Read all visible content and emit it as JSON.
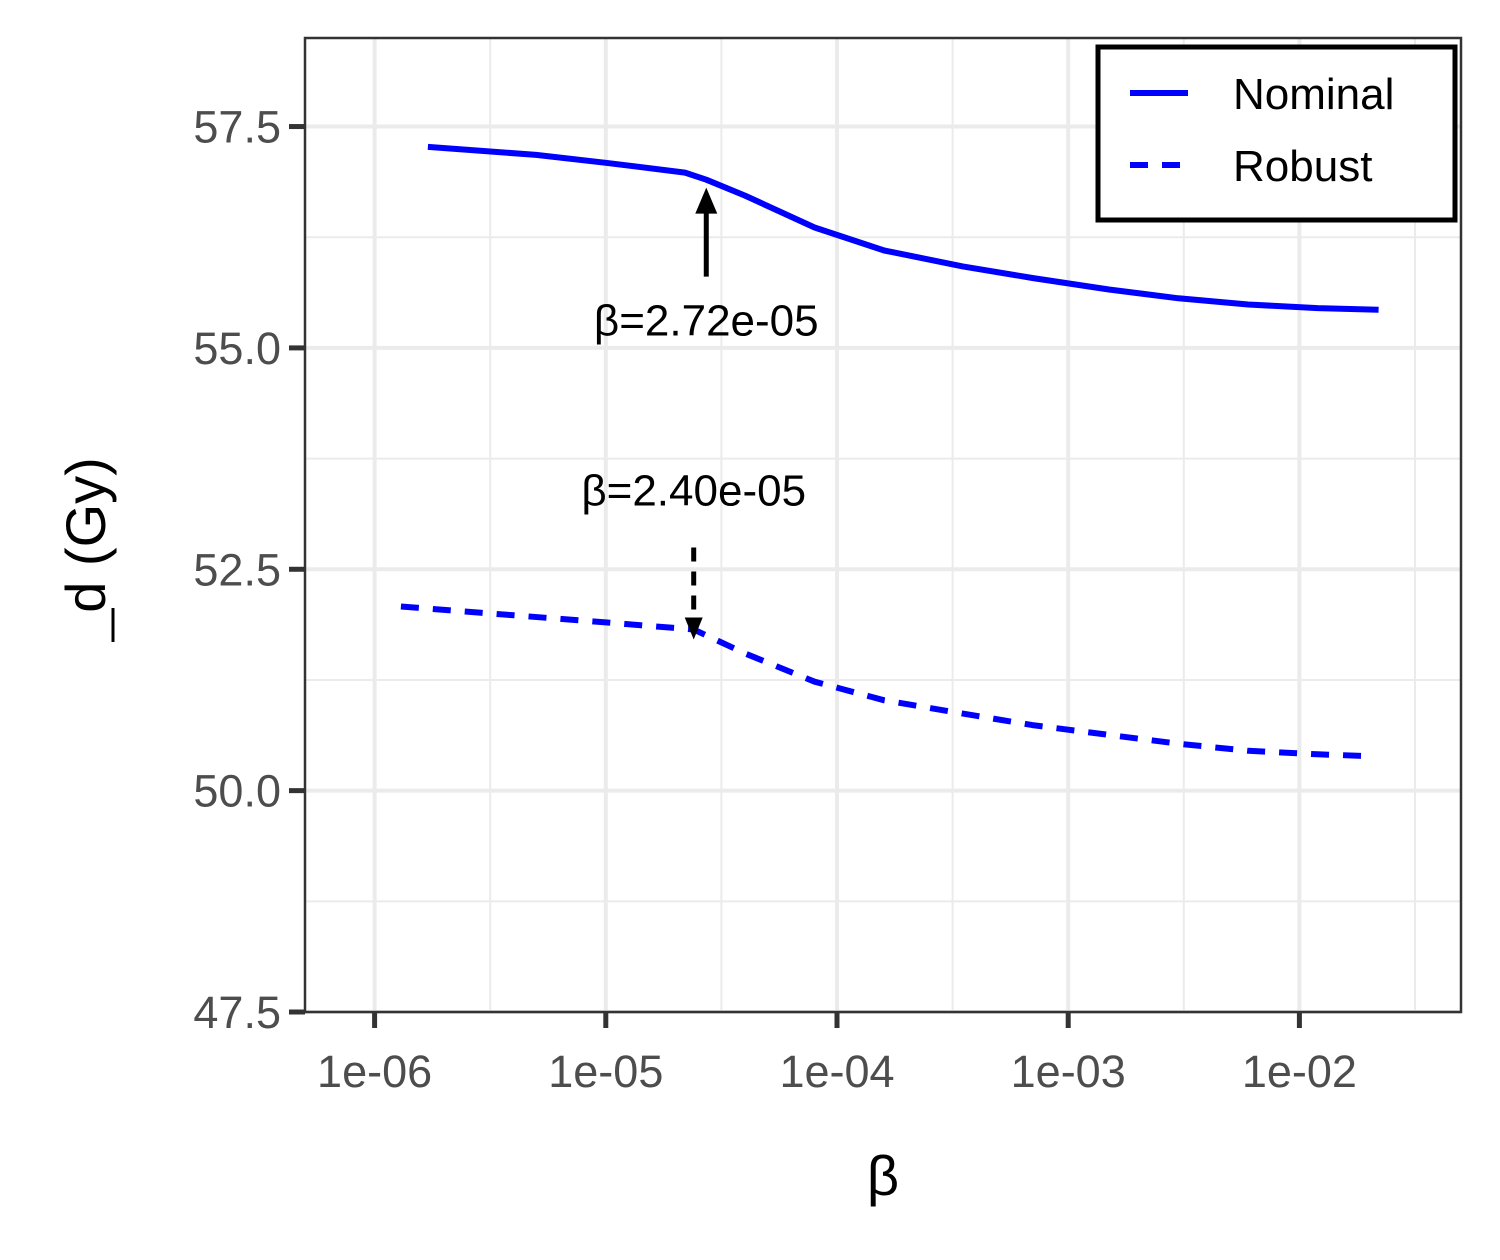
{
  "chart_data": {
    "type": "line",
    "xlabel": "β",
    "ylabel": "d (Gy)",
    "xscale": "log10",
    "xlim": [
      5e-07,
      0.05
    ],
    "ylim": [
      47.5,
      58.5
    ],
    "xticks": [
      {
        "value": 1e-06,
        "label": "1e-06"
      },
      {
        "value": 1e-05,
        "label": "1e-05"
      },
      {
        "value": 0.0001,
        "label": "1e-04"
      },
      {
        "value": 0.001,
        "label": "1e-03"
      },
      {
        "value": 0.01,
        "label": "1e-02"
      }
    ],
    "yticks": [
      {
        "value": 47.5,
        "label": "47.5"
      },
      {
        "value": 50.0,
        "label": "50.0"
      },
      {
        "value": 52.5,
        "label": "52.5"
      },
      {
        "value": 55.0,
        "label": "55.0"
      },
      {
        "value": 57.5,
        "label": "57.5"
      }
    ],
    "grid": true,
    "legend_position": "top-right",
    "series": [
      {
        "name": "Nominal",
        "style": "solid",
        "color": "#0000ff",
        "x": [
          1.7e-06,
          5e-06,
          1e-05,
          2.2e-05,
          2.72e-05,
          4e-05,
          8e-05,
          0.00016,
          0.00035,
          0.0007,
          0.0015,
          0.003,
          0.006,
          0.012,
          0.022
        ],
        "y": [
          57.27,
          57.18,
          57.09,
          56.98,
          56.9,
          56.72,
          56.36,
          56.1,
          55.92,
          55.79,
          55.66,
          55.56,
          55.49,
          55.45,
          55.43
        ]
      },
      {
        "name": "Robust",
        "style": "dashed",
        "color": "#0000ff",
        "x": [
          1.3e-06,
          4e-06,
          1e-05,
          2.4e-05,
          4e-05,
          8e-05,
          0.00016,
          0.00035,
          0.0007,
          0.0015,
          0.003,
          0.006,
          0.012,
          0.02
        ],
        "y": [
          52.08,
          51.98,
          51.9,
          51.82,
          51.55,
          51.23,
          51.02,
          50.87,
          50.74,
          50.63,
          50.53,
          50.45,
          50.41,
          50.39
        ]
      }
    ],
    "annotations": [
      {
        "text": "β=2.72e-05",
        "x": 2.72e-05,
        "y": 56.9,
        "series": "Nominal",
        "style": "solid",
        "placement": "below"
      },
      {
        "text": "β=2.40e-05",
        "x": 2.4e-05,
        "y": 51.82,
        "series": "Robust",
        "style": "dashed",
        "placement": "above"
      }
    ]
  }
}
